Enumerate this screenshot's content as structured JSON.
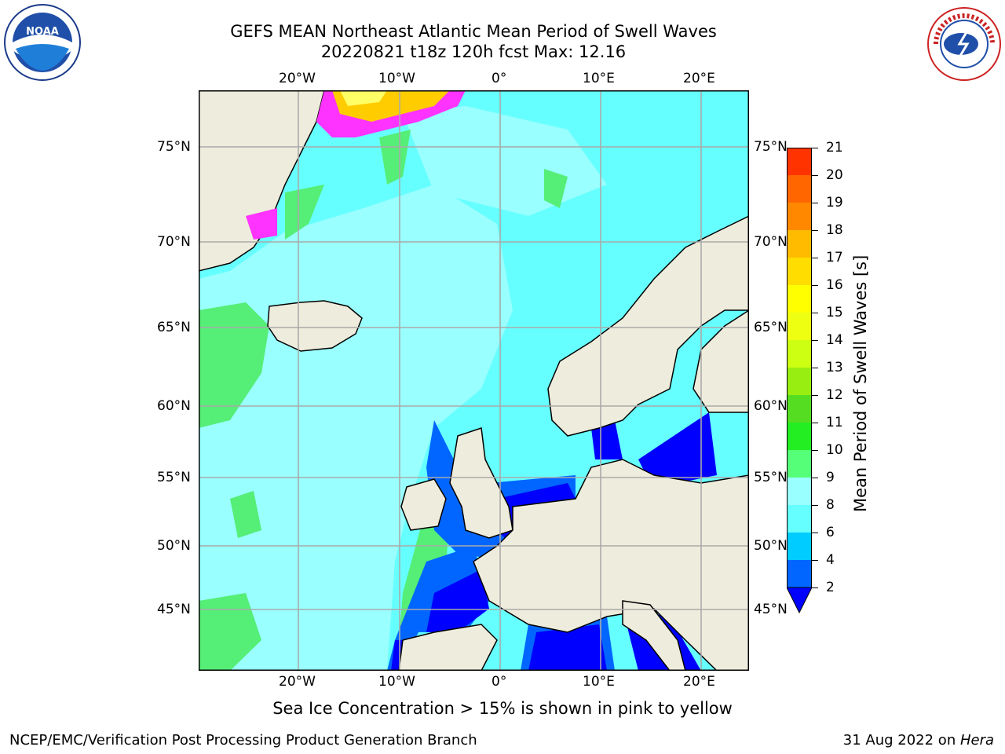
{
  "header": {
    "title_line1": "GEFS MEAN Northeast Atlantic Mean Period of Swell Waves",
    "title_line2": "20220821 t18z 120h fcst   Max: 12.16"
  },
  "logos": {
    "left": "NOAA",
    "right": "NATIONAL WEATHER SERVICE"
  },
  "map": {
    "lon_ticks": [
      "20°W",
      "10°W",
      "0°",
      "10°E",
      "20°E"
    ],
    "lat_ticks": [
      "75°N",
      "70°N",
      "65°N",
      "60°N",
      "55°N",
      "50°N",
      "45°N"
    ],
    "land_color": "#eeecdc",
    "ocean_main_color": "#66ffff",
    "ice_colors": [
      "#ff33ff",
      "#ffcc00",
      "#ffff66"
    ]
  },
  "colorbar": {
    "label": "Mean Period of Swell Waves [s]",
    "ticks": [
      "2",
      "4",
      "6",
      "8",
      "9",
      "10",
      "11",
      "12",
      "13",
      "14",
      "15",
      "16",
      "17",
      "18",
      "19",
      "20",
      "21"
    ],
    "colors": [
      "#0066ff",
      "#00ccff",
      "#66ffff",
      "#99ffff",
      "#55ff77",
      "#22ee22",
      "#55dd22",
      "#99ee11",
      "#ccff11",
      "#eeff11",
      "#ffff00",
      "#ffdd00",
      "#ffbb00",
      "#ff8800",
      "#ff6600",
      "#ff3300"
    ],
    "under_color": "#0000ff"
  },
  "caption": "Sea Ice Concentration > 15% is shown in pink to yellow",
  "footer": {
    "left": "NCEP/EMC/Verification Post Processing Product Generation Branch",
    "date": "31 Aug 2022 on ",
    "machine": "Hera"
  }
}
